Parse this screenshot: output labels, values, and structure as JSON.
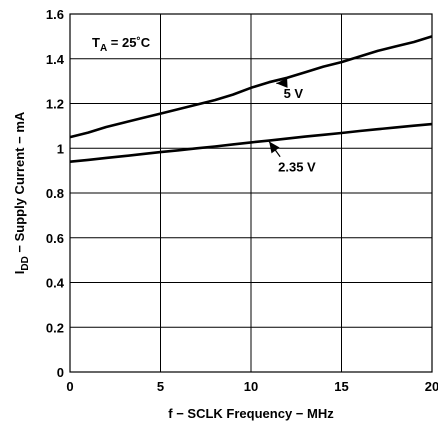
{
  "chart_data": {
    "type": "line",
    "title": "",
    "xlabel": "f − SCLK Frequency − MHz",
    "ylabel_main": "I",
    "ylabel_sub": "DD",
    "ylabel_rest": " − Supply Current − mA",
    "xlim": [
      0,
      20
    ],
    "ylim": [
      0,
      1.6
    ],
    "x_ticks": [
      0,
      5,
      10,
      15,
      20
    ],
    "x_tick_labels": [
      "0",
      "5",
      "10",
      "15",
      "20"
    ],
    "y_ticks": [
      0,
      0.2,
      0.4,
      0.6,
      0.8,
      1.0,
      1.2,
      1.4,
      1.6
    ],
    "y_tick_labels": [
      "0",
      "0.2",
      "0.4",
      "0.6",
      "0.8",
      "1",
      "1.2",
      "1.4",
      "1.6"
    ],
    "grid": true,
    "annotation": {
      "main": "T",
      "sub": "A",
      "rest": " = 25˚C"
    },
    "series": [
      {
        "name": "5 V",
        "x": [
          0,
          1,
          2,
          3,
          4,
          5,
          6,
          7,
          8,
          9,
          10,
          11,
          12,
          13,
          14,
          15,
          16,
          17,
          18,
          19,
          20
        ],
        "y": [
          1.05,
          1.07,
          1.095,
          1.115,
          1.135,
          1.155,
          1.175,
          1.195,
          1.215,
          1.24,
          1.27,
          1.295,
          1.315,
          1.34,
          1.365,
          1.385,
          1.41,
          1.435,
          1.455,
          1.475,
          1.5
        ],
        "label_at": [
          11.8,
          1.225
        ],
        "arrow_to": [
          11.4,
          1.29
        ]
      },
      {
        "name": "2.35 V",
        "x": [
          0,
          1,
          2,
          3,
          4,
          5,
          6,
          7,
          8,
          9,
          10,
          11,
          12,
          13,
          14,
          15,
          16,
          17,
          18,
          19,
          20
        ],
        "y": [
          0.94,
          0.948,
          0.957,
          0.965,
          0.974,
          0.983,
          0.991,
          1.0,
          1.008,
          1.017,
          1.026,
          1.034,
          1.043,
          1.052,
          1.06,
          1.068,
          1.077,
          1.085,
          1.093,
          1.101,
          1.108
        ],
        "label_at": [
          11.5,
          0.895
        ],
        "arrow_to": [
          11.0,
          1.03
        ]
      }
    ]
  }
}
